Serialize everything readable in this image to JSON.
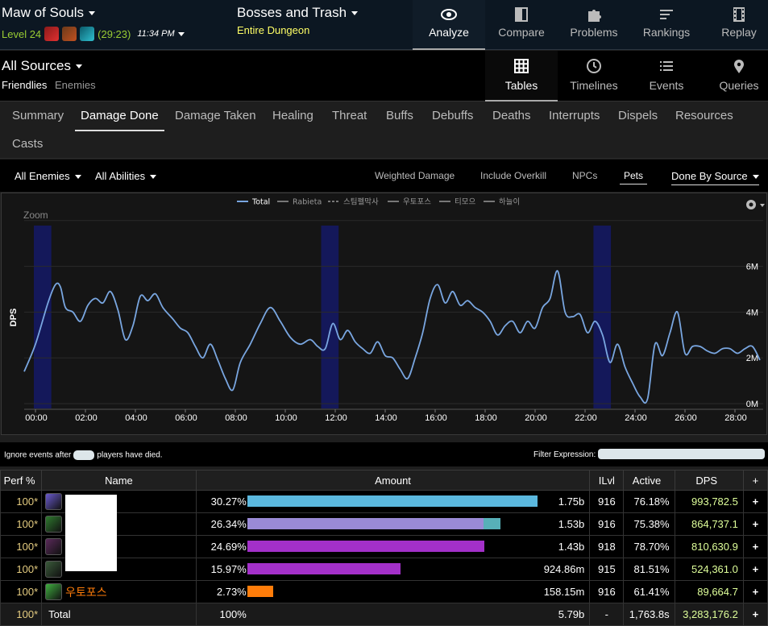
{
  "header": {
    "report_title": "Maw of Souls",
    "level": "Level 24",
    "duration": "(29:23)",
    "time": "11:34 PM",
    "fight_title": "Bosses and Trash",
    "fight_sub": "Entire Dungeon",
    "nav": [
      {
        "label": "Analyze",
        "icon": "eye-icon",
        "active": true
      },
      {
        "label": "Compare",
        "icon": "compare-icon",
        "active": false
      },
      {
        "label": "Problems",
        "icon": "puzzle-icon",
        "active": false
      },
      {
        "label": "Rankings",
        "icon": "rankings-icon",
        "active": false
      },
      {
        "label": "Replay",
        "icon": "film-icon",
        "active": false
      }
    ]
  },
  "sources": {
    "title": "All Sources",
    "friendlies": "Friendlies",
    "enemies": "Enemies",
    "views": [
      {
        "label": "Tables",
        "icon": "grid-icon",
        "active": true
      },
      {
        "label": "Timelines",
        "icon": "clock-icon",
        "active": false
      },
      {
        "label": "Events",
        "icon": "list-icon",
        "active": false
      },
      {
        "label": "Queries",
        "icon": "pin-icon",
        "active": false
      }
    ]
  },
  "tabs": [
    "Summary",
    "Damage Done",
    "Damage Taken",
    "Healing",
    "Threat",
    "Buffs",
    "Debuffs",
    "Deaths",
    "Interrupts",
    "Dispels",
    "Resources",
    "Casts"
  ],
  "active_tab": "Damage Done",
  "filters": {
    "enemies": "All Enemies",
    "abilities": "All Abilities",
    "weighted": "Weighted Damage",
    "overkill": "Include Overkill",
    "npcs": "NPCs",
    "pets": "Pets",
    "done_by": "Done By Source"
  },
  "chart_data": {
    "type": "line",
    "zoom_label": "Zoom",
    "ylabel": "DPS",
    "ylim": [
      0,
      7800000
    ],
    "y_ticks": [
      "0M",
      "2M",
      "4M",
      "6M"
    ],
    "x_ticks": [
      "00:00",
      "02:00",
      "04:00",
      "06:00",
      "08:00",
      "10:00",
      "12:00",
      "14:00",
      "16:00",
      "18:00",
      "20:00",
      "22:00",
      "24:00",
      "26:00",
      "28:00"
    ],
    "legend": [
      "Total",
      "Rabieta",
      "스팀펠막사",
      "우토포스",
      "티모으",
      "하늘이"
    ],
    "highlight_ranges_min": [
      [
        0.0,
        0.7
      ],
      [
        11.5,
        12.2
      ],
      [
        22.4,
        23.1
      ]
    ],
    "series": [
      {
        "name": "Total",
        "color": "#79a6e0",
        "x": [
          -0.5,
          0.0,
          0.5,
          0.8,
          1.0,
          1.2,
          1.5,
          1.8,
          2.1,
          2.4,
          2.7,
          3.0,
          3.3,
          3.6,
          3.9,
          4.2,
          4.5,
          4.8,
          5.1,
          5.5,
          5.8,
          6.1,
          6.4,
          6.7,
          7.0,
          7.3,
          7.6,
          7.9,
          8.2,
          8.6,
          9.0,
          9.4,
          9.8,
          10.2,
          10.6,
          11.0,
          11.3,
          11.6,
          11.9,
          12.2,
          12.5,
          12.8,
          13.1,
          13.4,
          13.7,
          14.0,
          14.3,
          14.6,
          14.9,
          15.2,
          15.5,
          15.8,
          16.1,
          16.4,
          16.7,
          17.0,
          17.3,
          17.6,
          17.9,
          18.2,
          18.5,
          18.8,
          19.1,
          19.4,
          19.7,
          20.0,
          20.3,
          20.6,
          20.9,
          21.2,
          21.5,
          21.8,
          22.1,
          22.4,
          22.7,
          23.0,
          23.3,
          23.6,
          23.9,
          24.2,
          24.5,
          24.8,
          25.1,
          25.4,
          25.7,
          26.0,
          26.3,
          26.6,
          26.9,
          27.2,
          27.5,
          27.8,
          28.1,
          28.4,
          28.7,
          29.0
        ],
        "y": [
          1400000,
          2600000,
          4400000,
          5200000,
          5100000,
          4200000,
          4000000,
          3600000,
          4300000,
          4600000,
          4400000,
          4900000,
          4100000,
          2800000,
          3400000,
          4700000,
          4500000,
          4800000,
          4200000,
          3700000,
          3300000,
          3100000,
          2500000,
          2000000,
          2600000,
          1900000,
          1100000,
          600000,
          1800000,
          2600000,
          3500000,
          4200000,
          3600000,
          2900000,
          2600000,
          2800000,
          2500000,
          2400000,
          3500000,
          2800000,
          3200000,
          2700000,
          2400000,
          2200000,
          2700000,
          2100000,
          2000000,
          1500000,
          1100000,
          2000000,
          3100000,
          4600000,
          5200000,
          4400000,
          4900000,
          4300000,
          4500000,
          4200000,
          4000000,
          3600000,
          3000000,
          3400000,
          3600000,
          3100000,
          3600000,
          3300000,
          4200000,
          4600000,
          5800000,
          4000000,
          3800000,
          3900000,
          3100000,
          3600000,
          3000000,
          1800000,
          2600000,
          1600000,
          900000,
          300000,
          200000,
          2600000,
          2100000,
          3100000,
          4000000,
          2200000,
          2500000,
          2500000,
          2300000,
          2200000,
          2400000,
          2400000,
          2200000,
          2400000,
          2500000,
          1900000
        ]
      }
    ]
  },
  "events_bar": {
    "ignore_prefix": "Ignore events after",
    "ignore_suffix": "players have died.",
    "filter_label": "Filter Expression:"
  },
  "table": {
    "headers": {
      "perf": "Perf %",
      "name": "Name",
      "amount": "Amount",
      "ilvl": "ILvl",
      "active": "Active",
      "dps": "DPS",
      "plus": "+"
    },
    "rows": [
      {
        "perf": "100*",
        "name": "",
        "pct": "30.27%",
        "amount": "1.75b",
        "ilvl": "916",
        "active": "76.18%",
        "dps": "993,782.5",
        "icon": "mage-class-icon",
        "icon_color": "#6a5acd",
        "bar": [
          {
            "frac": 1.0,
            "color": "#5bb8de"
          }
        ]
      },
      {
        "perf": "100*",
        "name": "",
        "pct": "26.34%",
        "amount": "1.53b",
        "ilvl": "916",
        "active": "75.38%",
        "dps": "864,737.1",
        "icon": "hunter-class-icon",
        "icon_color": "#2f7a2f",
        "bar": [
          {
            "frac": 0.813,
            "color": "#9a8ad6"
          },
          {
            "frac": 0.057,
            "color": "#57b0b8"
          }
        ]
      },
      {
        "perf": "100*",
        "name": "",
        "pct": "24.69%",
        "amount": "1.43b",
        "ilvl": "918",
        "active": "78.70%",
        "dps": "810,630.9",
        "icon": "demon-class-icon",
        "icon_color": "#5a2a5a",
        "bar": [
          {
            "frac": 0.816,
            "color": "#a330c9"
          }
        ]
      },
      {
        "perf": "100*",
        "name": "",
        "pct": "15.97%",
        "amount": "924.86m",
        "ilvl": "915",
        "active": "81.51%",
        "dps": "524,361.0",
        "icon": "demon-class-icon",
        "icon_color": "#3a5a3a",
        "bar": [
          {
            "frac": 0.528,
            "color": "#a330c9"
          }
        ]
      },
      {
        "perf": "100*",
        "name": "우토포스",
        "pct": "2.73%",
        "amount": "158.15m",
        "ilvl": "916",
        "active": "61.41%",
        "dps": "89,664.7",
        "icon": "druid-class-icon",
        "icon_color": "#3fae3f",
        "bar": [
          {
            "frac": 0.09,
            "color": "#ff7d0a"
          }
        ]
      }
    ],
    "total": {
      "perf": "100*",
      "name": "Total",
      "pct": "100%",
      "amount": "5.79b",
      "ilvl": "-",
      "active": "1,763.8s",
      "dps": "3,283,176.2"
    }
  }
}
